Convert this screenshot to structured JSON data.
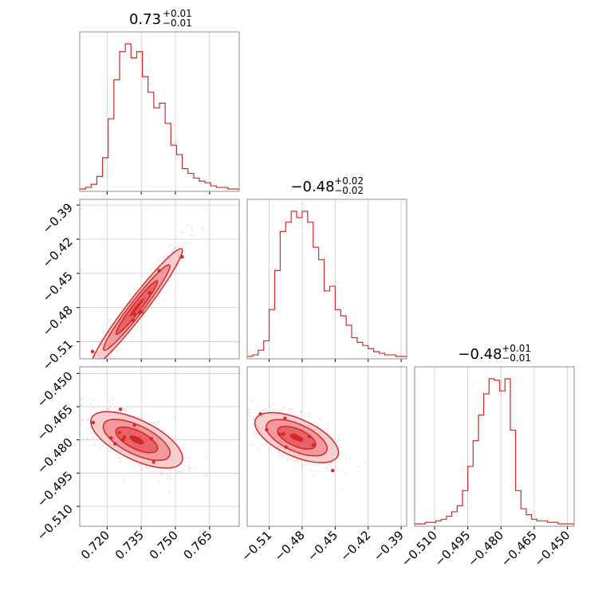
{
  "chart_data": [
    {
      "id": "p00",
      "type": "histogram",
      "row": 0,
      "col": 0,
      "title": {
        "value": "0.73",
        "plus": "+0.01",
        "minus": "−0.01"
      },
      "xlim": [
        0.708,
        0.778
      ],
      "xticks": [
        0.72,
        0.735,
        0.75,
        0.765
      ],
      "bins": [
        0.708,
        0.7105,
        0.713,
        0.7155,
        0.718,
        0.7205,
        0.723,
        0.7255,
        0.728,
        0.7305,
        0.733,
        0.7355,
        0.738,
        0.7405,
        0.743,
        0.7455,
        0.748,
        0.7505,
        0.753,
        0.7555,
        0.758,
        0.7605,
        0.763,
        0.7655,
        0.768,
        0.7705,
        0.773,
        0.7755,
        0.778
      ],
      "counts": [
        0.0,
        0.01,
        0.03,
        0.08,
        0.2,
        0.45,
        0.7,
        0.88,
        0.93,
        0.84,
        0.88,
        0.72,
        0.62,
        0.52,
        0.55,
        0.42,
        0.28,
        0.22,
        0.13,
        0.1,
        0.07,
        0.05,
        0.04,
        0.02,
        0.01,
        0.01,
        0.0,
        0.0
      ]
    },
    {
      "id": "p10",
      "type": "contour",
      "row": 1,
      "col": 0,
      "xlim": [
        0.708,
        0.778
      ],
      "ylim": [
        -0.525,
        -0.385
      ],
      "yticks": [
        -0.39,
        -0.42,
        -0.45,
        -0.48,
        -0.51
      ],
      "ytick_labels": [
        "−0.39",
        "−0.42",
        "−0.45",
        "−0.48",
        "−0.51"
      ],
      "center": [
        0.733,
        -0.48
      ],
      "spread_x": 0.009,
      "slope_y_per_x": 2.6,
      "perp_spread_y": 0.006,
      "levels_sigma": [
        2.2,
        1.6,
        1.0,
        0.35
      ]
    },
    {
      "id": "p11",
      "type": "histogram",
      "row": 1,
      "col": 1,
      "title": {
        "value": "−0.48",
        "plus": "+0.02",
        "minus": "−0.02"
      },
      "xlim": [
        -0.53,
        -0.385
      ],
      "bins": [
        -0.53,
        -0.525,
        -0.52,
        -0.515,
        -0.51,
        -0.505,
        -0.5,
        -0.495,
        -0.49,
        -0.485,
        -0.48,
        -0.475,
        -0.47,
        -0.465,
        -0.46,
        -0.455,
        -0.45,
        -0.445,
        -0.44,
        -0.435,
        -0.43,
        -0.425,
        -0.42,
        -0.415,
        -0.41,
        -0.405,
        -0.4,
        -0.395,
        -0.39,
        -0.385
      ],
      "counts": [
        0.0,
        0.01,
        0.04,
        0.1,
        0.3,
        0.55,
        0.8,
        0.86,
        0.93,
        0.89,
        0.93,
        0.86,
        0.7,
        0.62,
        0.42,
        0.45,
        0.3,
        0.26,
        0.2,
        0.12,
        0.09,
        0.07,
        0.05,
        0.03,
        0.02,
        0.01,
        0.01,
        0.0,
        0.0
      ]
    },
    {
      "id": "p20",
      "type": "contour",
      "row": 2,
      "col": 0,
      "xlim": [
        0.708,
        0.778
      ],
      "ylim": [
        -0.519,
        -0.447
      ],
      "yticks": [
        -0.45,
        -0.465,
        -0.48,
        -0.495,
        -0.51
      ],
      "ytick_labels": [
        "−0.450",
        "−0.465",
        "−0.480",
        "−0.495",
        "−0.510"
      ],
      "xticks": [
        0.72,
        0.735,
        0.75,
        0.765
      ],
      "xtick_labels": [
        "0.720",
        "0.735",
        "0.750",
        "0.765"
      ],
      "center": [
        0.733,
        -0.48
      ],
      "spread_x": 0.009,
      "slope_y_per_x": -0.5,
      "perp_spread_y": 0.0045,
      "levels_sigma": [
        2.2,
        1.6,
        1.0,
        0.35
      ]
    },
    {
      "id": "p21",
      "type": "contour",
      "row": 2,
      "col": 1,
      "xlim": [
        -0.53,
        -0.385
      ],
      "ylim": [
        -0.519,
        -0.447
      ],
      "xticks": [
        -0.51,
        -0.48,
        -0.45,
        -0.42,
        -0.39
      ],
      "xtick_labels": [
        "−0.51",
        "−0.48",
        "−0.45",
        "−0.42",
        "−0.39"
      ],
      "center": [
        -0.485,
        -0.479
      ],
      "spread_x": 0.017,
      "slope_y_per_x": -0.22,
      "perp_spread_y": 0.0042,
      "levels_sigma": [
        2.2,
        1.6,
        1.0,
        0.35
      ]
    },
    {
      "id": "p22",
      "type": "histogram",
      "row": 2,
      "col": 2,
      "title": {
        "value": "−0.48",
        "plus": "+0.01",
        "minus": "−0.01"
      },
      "xlim": [
        -0.519,
        -0.447
      ],
      "xticks": [
        -0.51,
        -0.495,
        -0.48,
        -0.465,
        -0.45
      ],
      "xtick_labels": [
        "−0.510",
        "−0.495",
        "−0.480",
        "−0.465",
        "−0.450"
      ],
      "bins": [
        -0.519,
        -0.5166,
        -0.5142,
        -0.5118,
        -0.5094,
        -0.507,
        -0.5046,
        -0.5022,
        -0.4998,
        -0.4974,
        -0.495,
        -0.4926,
        -0.4902,
        -0.4878,
        -0.4854,
        -0.483,
        -0.4806,
        -0.4782,
        -0.4758,
        -0.4734,
        -0.471,
        -0.4686,
        -0.4662,
        -0.4638,
        -0.4614,
        -0.459,
        -0.4566,
        -0.4542,
        -0.4518,
        -0.4494,
        -0.447
      ],
      "counts": [
        0.0,
        0.0,
        0.01,
        0.01,
        0.02,
        0.03,
        0.05,
        0.08,
        0.12,
        0.22,
        0.38,
        0.55,
        0.72,
        0.86,
        0.96,
        0.95,
        0.88,
        0.96,
        0.62,
        0.22,
        0.1,
        0.06,
        0.03,
        0.02,
        0.02,
        0.01,
        0.01,
        0.0,
        0.0,
        0.0
      ]
    }
  ]
}
